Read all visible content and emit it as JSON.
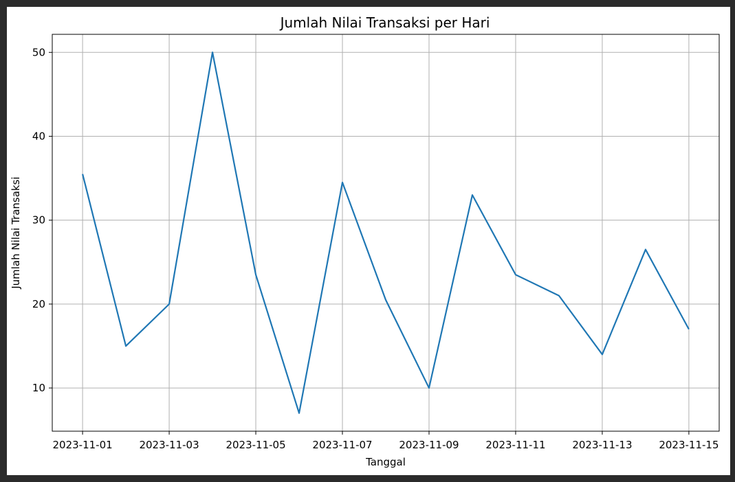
{
  "chart_data": {
    "type": "line",
    "title": "Jumlah Nilai Transaksi per Hari",
    "xlabel": "Tanggal",
    "ylabel": "Jumlah Nilai Transaksi",
    "x": [
      "2023-11-01",
      "2023-11-02",
      "2023-11-03",
      "2023-11-04",
      "2023-11-05",
      "2023-11-06",
      "2023-11-07",
      "2023-11-08",
      "2023-11-09",
      "2023-11-10",
      "2023-11-11",
      "2023-11-12",
      "2023-11-13",
      "2023-11-14",
      "2023-11-15"
    ],
    "series": [
      {
        "values": [
          35.5,
          15,
          20,
          50,
          23.5,
          7,
          34.5,
          20.5,
          10,
          33,
          23.5,
          21,
          14,
          26.5,
          17
        ],
        "color": "#1f77b4"
      }
    ],
    "x_ticks": [
      "2023-11-01",
      "2023-11-03",
      "2023-11-05",
      "2023-11-07",
      "2023-11-09",
      "2023-11-11",
      "2023-11-13",
      "2023-11-15"
    ],
    "y_ticks": [
      10,
      20,
      30,
      40,
      50
    ],
    "ylim": [
      4.85,
      52.15
    ],
    "xlim": [
      "2023-10-31 07:12",
      "2023-11-15 16:48"
    ],
    "grid": true,
    "legend": "none"
  }
}
